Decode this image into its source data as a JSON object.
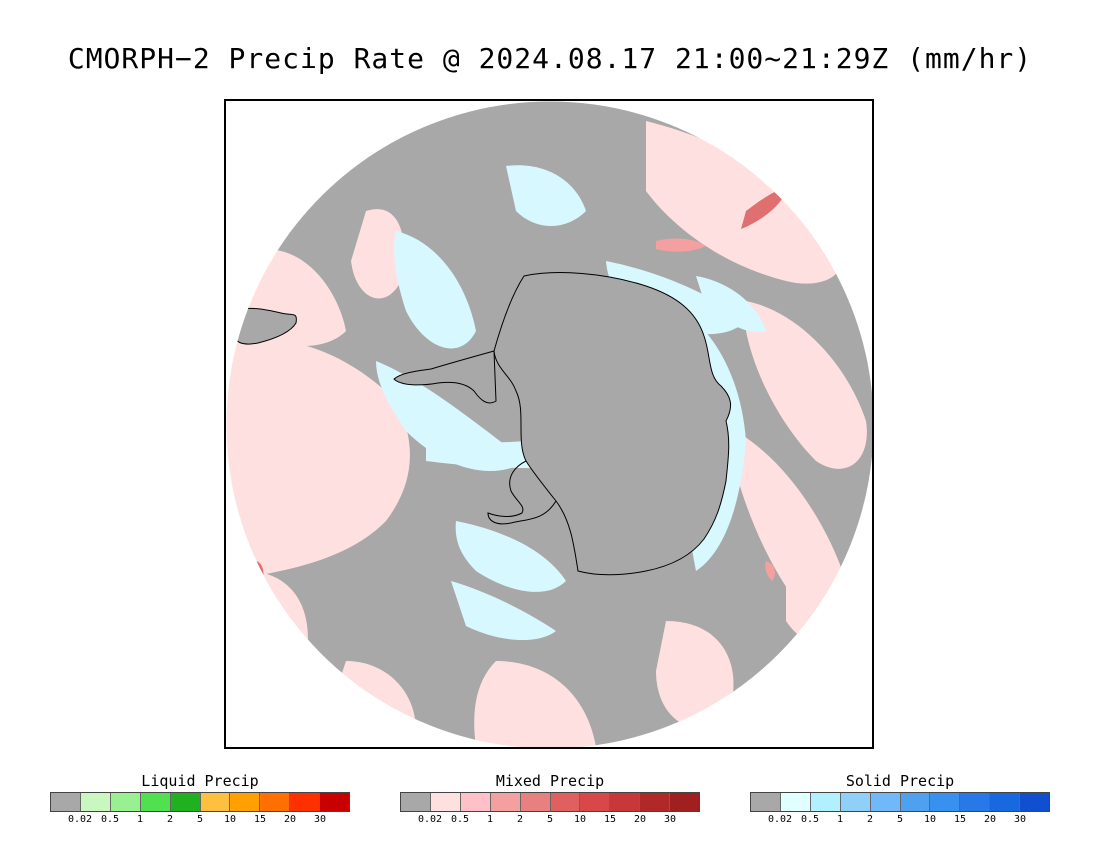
{
  "title": "CMORPH−2 Precip Rate @ 2024.08.17 21:00~21:29Z (mm/hr)",
  "map": {
    "projection": "south-polar-stereographic",
    "colors": {
      "no_precip": "#a8a8a8",
      "mixed_light": "#ffe0e0",
      "mixed_moderate": "#f4a0a0",
      "mixed_heavy": "#e07070",
      "solid_light": "#d8f8ff",
      "coastline": "#000000",
      "background": "#ffffff"
    }
  },
  "legends": [
    {
      "title": "Liquid Precip",
      "ticks": [
        "0.02",
        "0.5",
        "1",
        "2",
        "5",
        "10",
        "15",
        "20",
        "30"
      ],
      "colors": [
        "#a8a8a8",
        "#c8f8c0",
        "#98f090",
        "#50e050",
        "#20b020",
        "#ffc040",
        "#ffa000",
        "#ff7000",
        "#ff3000",
        "#c80000"
      ]
    },
    {
      "title": "Mixed Precip",
      "ticks": [
        "0.02",
        "0.5",
        "1",
        "2",
        "5",
        "10",
        "15",
        "20",
        "30"
      ],
      "colors": [
        "#a8a8a8",
        "#ffe0e0",
        "#ffc0c8",
        "#f4a0a0",
        "#e88080",
        "#e06060",
        "#d84848",
        "#c83838",
        "#b02828",
        "#a02020"
      ]
    },
    {
      "title": "Solid Precip",
      "ticks": [
        "0.02",
        "0.5",
        "1",
        "2",
        "5",
        "10",
        "15",
        "20",
        "30"
      ],
      "colors": [
        "#a8a8a8",
        "#e0ffff",
        "#b0f0ff",
        "#90d0f8",
        "#70b8f8",
        "#50a0f0",
        "#3890f0",
        "#2878e8",
        "#1868e0",
        "#1050d0"
      ]
    }
  ]
}
